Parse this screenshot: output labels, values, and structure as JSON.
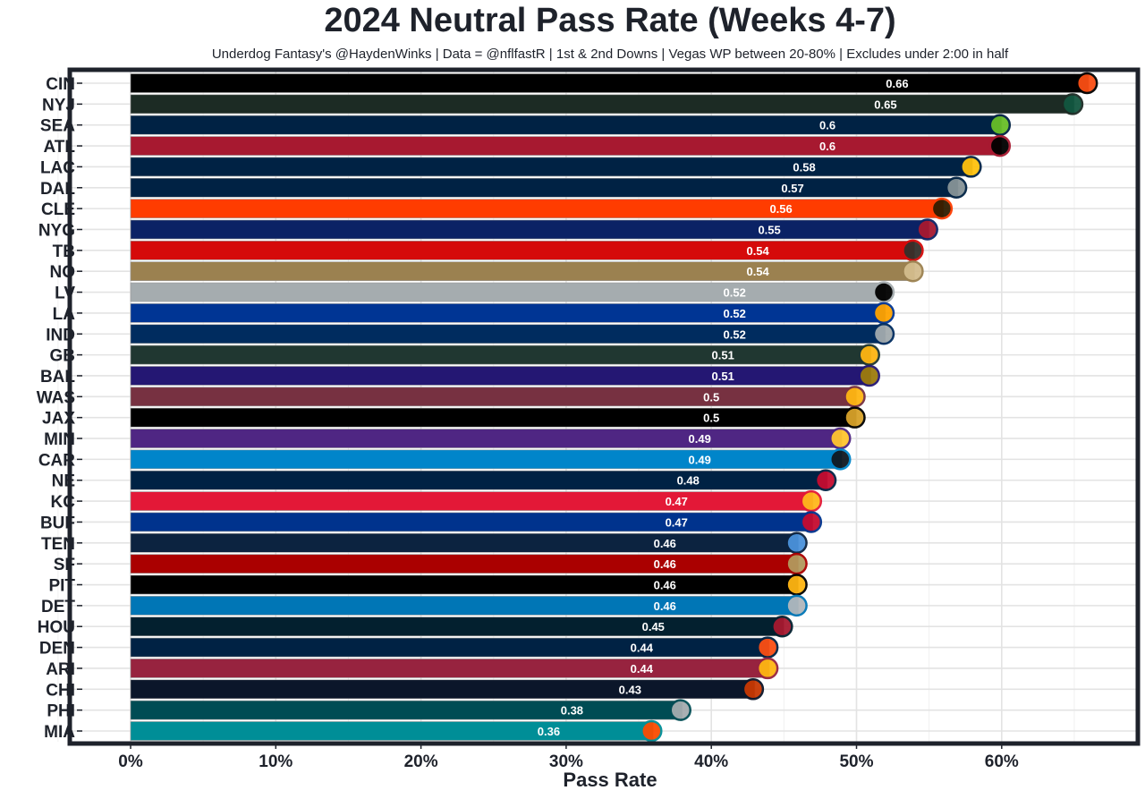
{
  "chart_data": {
    "type": "bar",
    "orientation": "horizontal",
    "title": "2024 Neutral Pass Rate (Weeks 4-7)",
    "subtitle": "Underdog Fantasy's @HaydenWinks | Data = @nflfastR | 1st & 2nd Downs | Vegas WP between 20-80% | Excludes under 2:00 in half",
    "xlabel": "Pass Rate",
    "ylabel": "",
    "xlim": [
      0,
      0.7
    ],
    "x_ticks": [
      "0%",
      "10%",
      "20%",
      "30%",
      "40%",
      "50%",
      "60%"
    ],
    "grid": true,
    "categories": [
      "CIN",
      "NYJ",
      "SEA",
      "ATL",
      "LAC",
      "DAL",
      "CLE",
      "NYG",
      "TB",
      "NO",
      "LV",
      "LA",
      "IND",
      "GB",
      "BAL",
      "WAS",
      "JAX",
      "MIN",
      "CAR",
      "NE",
      "KC",
      "BUF",
      "TEN",
      "SF",
      "PIT",
      "DET",
      "HOU",
      "DEN",
      "ARI",
      "CHI",
      "PHI",
      "MIA"
    ],
    "values": [
      0.66,
      0.65,
      0.6,
      0.6,
      0.58,
      0.57,
      0.56,
      0.55,
      0.54,
      0.54,
      0.52,
      0.52,
      0.52,
      0.51,
      0.51,
      0.5,
      0.5,
      0.49,
      0.49,
      0.48,
      0.47,
      0.47,
      0.46,
      0.46,
      0.46,
      0.46,
      0.45,
      0.44,
      0.44,
      0.43,
      0.38,
      0.36
    ],
    "labels": [
      "0.66",
      "0.65",
      "0.6",
      "0.6",
      "0.58",
      "0.57",
      "0.56",
      "0.55",
      "0.54",
      "0.54",
      "0.52",
      "0.52",
      "0.52",
      "0.51",
      "0.51",
      "0.5",
      "0.5",
      "0.49",
      "0.49",
      "0.48",
      "0.47",
      "0.47",
      "0.46",
      "0.46",
      "0.46",
      "0.46",
      "0.45",
      "0.44",
      "0.44",
      "0.43",
      "0.38",
      "0.36"
    ],
    "colors": [
      "#000000",
      "#1c2b24",
      "#002244",
      "#a71930",
      "#002244",
      "#002244",
      "#ff3c00",
      "#0b2265",
      "#d50a0a",
      "#9b8150",
      "#a5acaf",
      "#003594",
      "#002c5f",
      "#203731",
      "#241773",
      "#773141",
      "#000000",
      "#4f2683",
      "#0085ca",
      "#002244",
      "#e31837",
      "#00338d",
      "#0c2340",
      "#aa0000",
      "#000000",
      "#0076b6",
      "#03202f",
      "#002244",
      "#97233f",
      "#0b162a",
      "#004c54",
      "#008e97"
    ],
    "bar_opacity": 0.9,
    "logo_colors": [
      "#fb4f14",
      "#125740",
      "#69be28",
      "#000000",
      "#ffc20e",
      "#869397",
      "#311d00",
      "#a71930",
      "#34302b",
      "#d3bc8d",
      "#000000",
      "#ffa300",
      "#a2aaad",
      "#ffb612",
      "#9e7c0c",
      "#ffb612",
      "#d7a22a",
      "#ffc62f",
      "#101820",
      "#c60c30",
      "#ffb81c",
      "#c60c30",
      "#4b92db",
      "#b3995d",
      "#ffb612",
      "#b0b7bc",
      "#a71930",
      "#fb4f14",
      "#ffb612",
      "#c83803",
      "#a5acaf",
      "#fc4c02"
    ]
  }
}
